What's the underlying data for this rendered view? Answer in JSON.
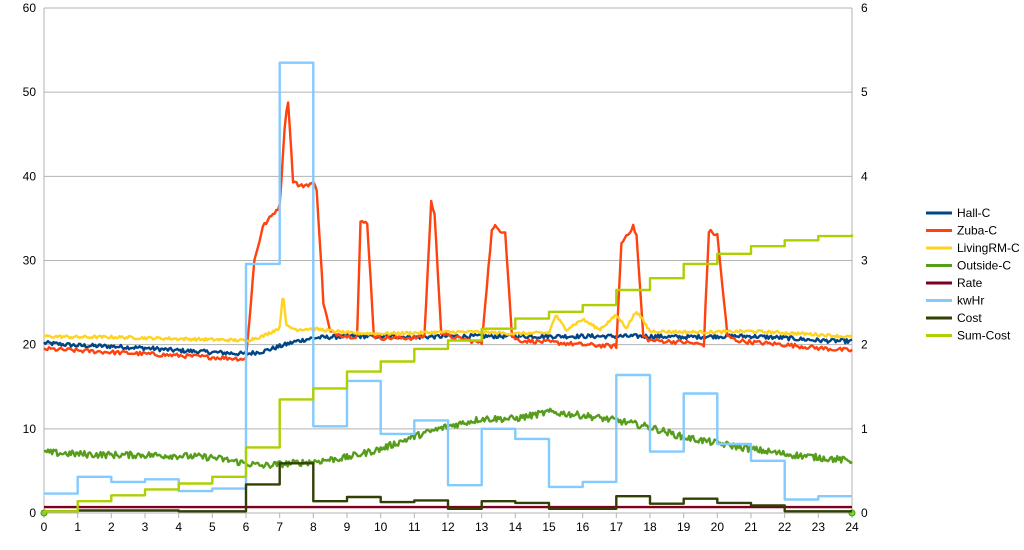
{
  "chart_data": {
    "type": "line",
    "title": "",
    "xlabel": "",
    "ylabel": "",
    "xlim": [
      0,
      24
    ],
    "ylim": [
      0,
      60
    ],
    "y2lim": [
      0,
      6
    ],
    "x_ticks": [
      "0",
      "1",
      "2",
      "3",
      "4",
      "5",
      "6",
      "7",
      "8",
      "9",
      "10",
      "11",
      "12",
      "13",
      "14",
      "15",
      "16",
      "17",
      "18",
      "19",
      "20",
      "21",
      "22",
      "23",
      "24"
    ],
    "y_ticks": [
      "0",
      "10",
      "20",
      "30",
      "40",
      "50",
      "60"
    ],
    "y2_ticks": [
      "0",
      "1",
      "2",
      "3",
      "4",
      "5",
      "6"
    ],
    "grid": "horizontal",
    "legend_position": "right",
    "series": [
      {
        "name": "Hall-C",
        "color": "#004586",
        "axis": "left",
        "shape": "smooth",
        "x": [
          0,
          1,
          2,
          3,
          4,
          5,
          6,
          6.5,
          7,
          7.5,
          8,
          9,
          10,
          11,
          12,
          13,
          14,
          15,
          16,
          17,
          18,
          19,
          20,
          21,
          22,
          23,
          24
        ],
        "y": [
          20.2,
          19.9,
          19.8,
          19.6,
          19.3,
          19.1,
          18.9,
          19.2,
          19.8,
          20.4,
          20.8,
          21.0,
          21.0,
          20.9,
          21.0,
          21.0,
          21.0,
          21.0,
          21.0,
          21.0,
          21.0,
          20.9,
          21.0,
          21.0,
          20.8,
          20.5,
          20.4
        ]
      },
      {
        "name": "Zuba-C",
        "color": "#ff420e",
        "axis": "left",
        "shape": "linear",
        "x": [
          0,
          1,
          2,
          3,
          4,
          5,
          6,
          6.25,
          6.5,
          6.8,
          7.0,
          7.15,
          7.25,
          7.4,
          7.6,
          8.0,
          8.1,
          8.3,
          8.5,
          9.0,
          9.3,
          9.4,
          9.6,
          9.8,
          10.0,
          11.0,
          11.3,
          11.5,
          11.6,
          11.8,
          12.0,
          13.0,
          13.3,
          13.4,
          13.6,
          13.7,
          13.9,
          14.1,
          15.0,
          16.0,
          17.0,
          17.15,
          17.3,
          17.5,
          17.6,
          17.8,
          18.0,
          19.0,
          19.6,
          19.75,
          20.0,
          20.3,
          20.6,
          21.0,
          22.0,
          23.0,
          24.0
        ],
        "y": [
          19.5,
          19.3,
          19.1,
          18.9,
          18.7,
          18.5,
          18.3,
          30.0,
          34.0,
          35.5,
          36.5,
          46.0,
          49.0,
          39.5,
          38.8,
          39.2,
          38.5,
          25.0,
          21.5,
          21.0,
          21.0,
          34.5,
          34.5,
          21.0,
          20.8,
          20.8,
          21.0,
          37.0,
          35.5,
          21.5,
          21.0,
          20.2,
          33.5,
          34.0,
          33.5,
          33.5,
          21.0,
          20.5,
          20.3,
          20.0,
          19.8,
          32.0,
          33.0,
          34.0,
          33.0,
          21.0,
          20.5,
          20.3,
          20.0,
          33.5,
          33.0,
          21.0,
          20.5,
          20.3,
          20.0,
          19.6,
          19.3
        ]
      },
      {
        "name": "LivingRM-C",
        "color": "#ffd320",
        "axis": "left",
        "shape": "smooth",
        "x": [
          0,
          1,
          2,
          3,
          4,
          5,
          6,
          6.5,
          7,
          7.1,
          7.2,
          7.5,
          8,
          9,
          10,
          11,
          12,
          13,
          14,
          15,
          15.2,
          15.5,
          16,
          16.5,
          17,
          17.3,
          17.6,
          18,
          19,
          20,
          21,
          22,
          23,
          24
        ],
        "y": [
          21.0,
          20.9,
          20.9,
          20.8,
          20.7,
          20.6,
          20.5,
          21.0,
          22.0,
          26.3,
          22.2,
          21.8,
          21.9,
          21.4,
          21.3,
          21.4,
          21.5,
          21.5,
          21.3,
          21.4,
          23.5,
          21.8,
          23.0,
          21.8,
          23.5,
          22.0,
          24.0,
          21.6,
          21.5,
          21.5,
          21.6,
          21.4,
          21.2,
          20.9
        ]
      },
      {
        "name": "Outside-C",
        "color": "#579d1c",
        "axis": "left",
        "shape": "smooth",
        "x": [
          0,
          1,
          2,
          3,
          4,
          5,
          6,
          6.5,
          7,
          8,
          9,
          10,
          11,
          12,
          13,
          14,
          15,
          16,
          17,
          18,
          19,
          20,
          21,
          22,
          23,
          24
        ],
        "y": [
          7.2,
          7.0,
          6.9,
          6.9,
          6.8,
          6.6,
          5.9,
          5.6,
          5.8,
          6.1,
          6.6,
          7.6,
          9.1,
          10.3,
          11.2,
          11.2,
          12.0,
          11.6,
          11.0,
          10.2,
          9.0,
          8.3,
          7.6,
          7.0,
          6.6,
          6.2
        ]
      },
      {
        "name": "Rate",
        "color": "#7e0021",
        "axis": "right",
        "shape": "step",
        "x": [
          0,
          24
        ],
        "y": [
          0.07,
          0.07
        ]
      },
      {
        "name": "kwHr",
        "color": "#83caff",
        "axis": "right",
        "shape": "step",
        "x": [
          0,
          1,
          2,
          3,
          4,
          5,
          6,
          7,
          8,
          9,
          10,
          11,
          12,
          13,
          14,
          15,
          16,
          17,
          18,
          19,
          20,
          21,
          22,
          23,
          24
        ],
        "y": [
          0.23,
          0.43,
          0.37,
          0.4,
          0.26,
          0.29,
          2.96,
          5.35,
          1.03,
          1.57,
          0.94,
          1.1,
          0.33,
          1.0,
          0.88,
          0.31,
          0.37,
          1.64,
          0.73,
          1.42,
          0.82,
          0.62,
          0.16,
          0.2,
          0.2
        ]
      },
      {
        "name": "Cost",
        "color": "#314004",
        "axis": "right",
        "shape": "step",
        "x": [
          0,
          1,
          2,
          3,
          4,
          5,
          6,
          7,
          8,
          9,
          10,
          11,
          12,
          13,
          14,
          15,
          16,
          17,
          18,
          19,
          20,
          21,
          22,
          23,
          24
        ],
        "y": [
          0.02,
          0.03,
          0.03,
          0.03,
          0.02,
          0.02,
          0.34,
          0.59,
          0.14,
          0.19,
          0.13,
          0.15,
          0.05,
          0.14,
          0.12,
          0.05,
          0.05,
          0.2,
          0.11,
          0.17,
          0.12,
          0.09,
          0.02,
          0.02,
          0.02
        ]
      },
      {
        "name": "Sum-Cost",
        "color": "#aecf00",
        "axis": "right",
        "shape": "step",
        "x": [
          0,
          1,
          2,
          3,
          4,
          5,
          6,
          7,
          8,
          9,
          10,
          11,
          12,
          13,
          14,
          15,
          16,
          17,
          18,
          19,
          20,
          21,
          22,
          23,
          24
        ],
        "y": [
          0.02,
          0.14,
          0.21,
          0.28,
          0.35,
          0.43,
          0.78,
          1.35,
          1.48,
          1.68,
          1.8,
          1.95,
          2.05,
          2.19,
          2.31,
          2.39,
          2.47,
          2.65,
          2.79,
          2.96,
          3.08,
          3.17,
          3.24,
          3.29,
          3.31
        ]
      }
    ]
  }
}
